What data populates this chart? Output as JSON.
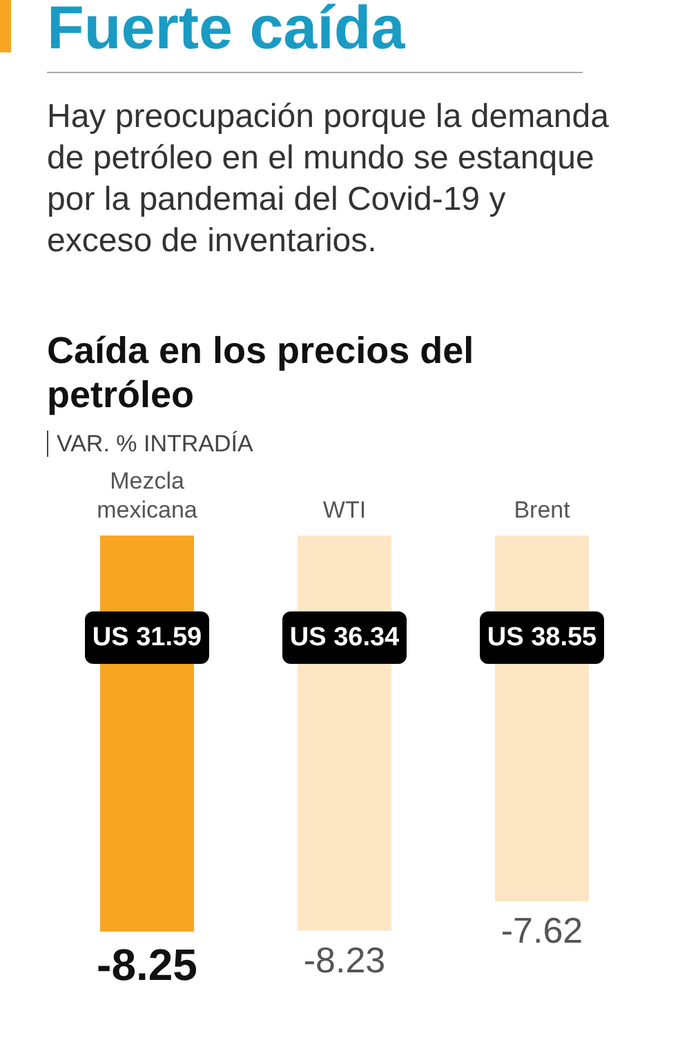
{
  "chart_data": {
    "type": "bar",
    "title": "Fuerte caída",
    "subtitle": "Hay preocupación porque la demanda de petróleo en el mundo se estanque por la pandemai del Covid-19 y exceso de inventarios.",
    "ylabel": "VAR. % INTRADÍA",
    "categories": [
      "Mezcla mexicana",
      "WTI",
      "Brent"
    ],
    "values": [
      -8.25,
      -8.23,
      -7.62
    ],
    "colors": [
      "#f6a623",
      "#fde6c4",
      "#fde6c4"
    ],
    "data_labels": true,
    "annotations": [
      "Caída en los precios del petróleo",
      "US 31.59",
      "US 36.34",
      "US 38.55"
    ]
  }
}
